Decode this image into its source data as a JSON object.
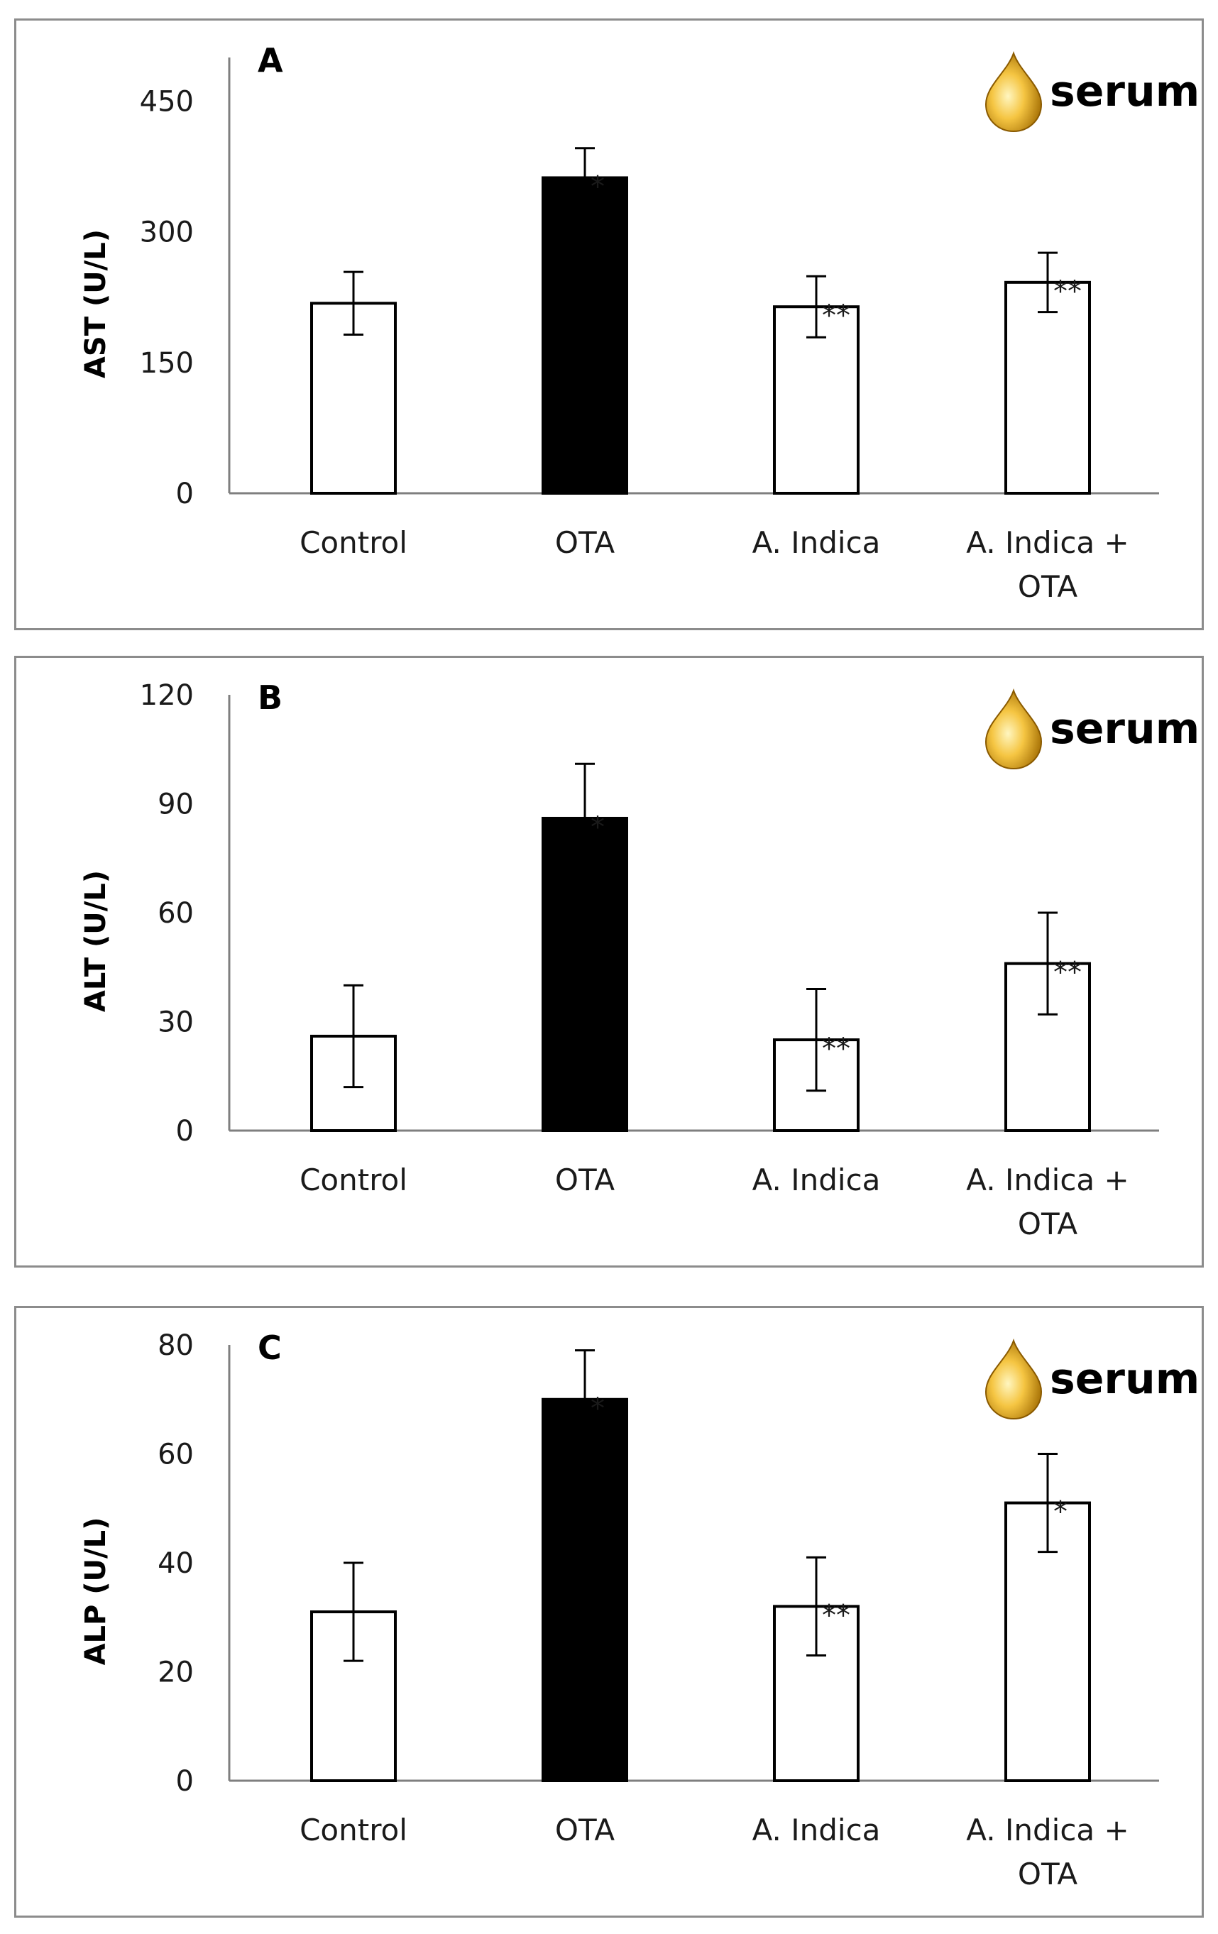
{
  "chart_data": [
    {
      "type": "bar",
      "panel_label": "A",
      "badge": "serum",
      "ylabel": "AST (U/L)",
      "ylim": [
        0,
        500
      ],
      "yticks": [
        0,
        150,
        300,
        450
      ],
      "categories": [
        [
          "Control"
        ],
        [
          "OTA"
        ],
        [
          "A. Indica"
        ],
        [
          "A. Indica +",
          "OTA"
        ]
      ],
      "values": [
        218,
        362,
        214,
        242
      ],
      "errors": [
        36,
        34,
        35,
        34
      ],
      "significance": [
        "",
        "*",
        "**",
        "**"
      ],
      "fills": [
        "#ffffff",
        "#000000",
        "#ffffff",
        "#ffffff"
      ]
    },
    {
      "type": "bar",
      "panel_label": "B",
      "badge": "serum",
      "ylabel": "ALT (U/L)",
      "ylim": [
        0,
        120
      ],
      "yticks": [
        0,
        30,
        60,
        90,
        120
      ],
      "categories": [
        [
          "Control"
        ],
        [
          "OTA"
        ],
        [
          "A. Indica"
        ],
        [
          "A. Indica +",
          "OTA"
        ]
      ],
      "values": [
        26,
        86,
        25,
        46
      ],
      "errors": [
        14,
        15,
        14,
        14
      ],
      "significance": [
        "",
        "*",
        "**",
        "**"
      ],
      "fills": [
        "#ffffff",
        "#000000",
        "#ffffff",
        "#ffffff"
      ]
    },
    {
      "type": "bar",
      "panel_label": "C",
      "badge": "serum",
      "ylabel": "ALP (U/L)",
      "ylim": [
        0,
        80
      ],
      "yticks": [
        0,
        20,
        40,
        60,
        80
      ],
      "categories": [
        [
          "Control"
        ],
        [
          "OTA"
        ],
        [
          "A. Indica"
        ],
        [
          "A. Indica +",
          "OTA"
        ]
      ],
      "values": [
        31,
        70,
        32,
        51
      ],
      "errors": [
        9,
        9,
        9,
        9
      ],
      "significance": [
        "",
        "*",
        "**",
        "*"
      ],
      "fills": [
        "#ffffff",
        "#000000",
        "#ffffff",
        "#ffffff"
      ]
    }
  ],
  "colors": {
    "axis": "#7f7f7f",
    "bar_stroke": "#000000",
    "drop_light": "#f5c542",
    "drop_dark": "#a06a00",
    "frame": "#8c8c8c"
  }
}
